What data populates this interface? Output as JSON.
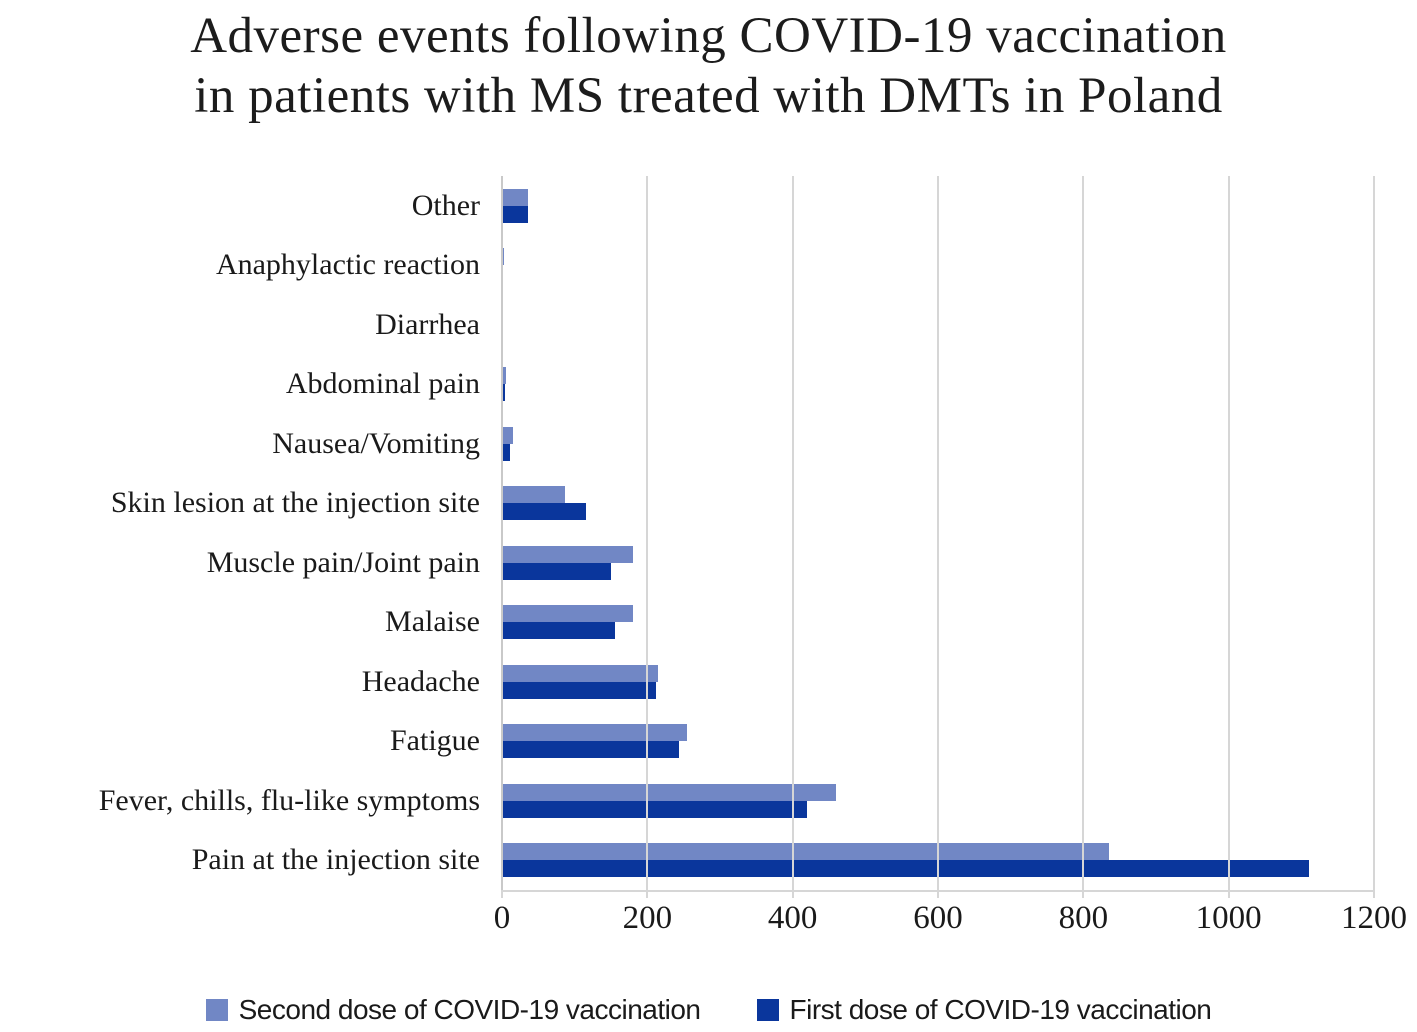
{
  "chart_data": {
    "type": "bar",
    "orientation": "horizontal",
    "title": "Adverse events following COVID-19 vaccination in patients with MS treated with DMTs in Poland",
    "title_lines": [
      "Adverse events following COVID-19 vaccination",
      "in patients with MS treated with DMTs in Poland"
    ],
    "categories": [
      "Other",
      "Anaphylactic reaction",
      "Diarrhea",
      "Abdominal pain",
      "Nausea/Vomiting",
      "Skin lesion at the injection site",
      "Muscle pain/Joint pain",
      "Malaise",
      "Headache",
      "Fatigue",
      "Fever, chills, flu-like symptoms",
      "Pain at the injection site"
    ],
    "series": [
      {
        "name": "Second dose of COVID-19 vaccination",
        "color": "#7187C5",
        "values": [
          36,
          3,
          0,
          6,
          15,
          87,
          180,
          180,
          215,
          255,
          460,
          835
        ]
      },
      {
        "name": "First dose of COVID-19 vaccination",
        "color": "#0A369C",
        "values": [
          36,
          1,
          0,
          4,
          11,
          115,
          150,
          155,
          212,
          243,
          420,
          1110
        ]
      }
    ],
    "xlim": [
      0,
      1200
    ],
    "x_ticks": [
      "0",
      "200",
      "400",
      "600",
      "800",
      "1000",
      "1200"
    ],
    "grid": true,
    "grid_color": "#d6d6d6",
    "axis_color": "#c9c9c9",
    "text_color": "#1a1a1a",
    "legend_position": "bottom"
  }
}
